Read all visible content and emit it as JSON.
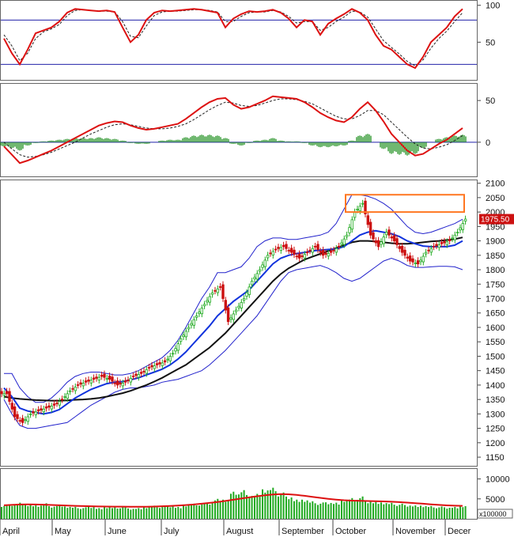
{
  "colors": {
    "rsi": "#dd1111",
    "signal": "#222222",
    "level_lines": "#2222aa",
    "hist_pos": "#118811",
    "hist_neg": "#118811",
    "bb": "#2222cc",
    "ma_fast": "#1133dd",
    "ma_slow": "#111111",
    "candle_up": "#22aa22",
    "candle_down": "#cc1111",
    "volume": "#22aa22",
    "volume_ma": "#dd1111",
    "highlight": "#ff7722"
  },
  "price_tag": "1975.50",
  "volume_unit": "x100000",
  "months": [
    "April",
    "May",
    "June",
    "July",
    "August",
    "September",
    "October",
    "November",
    "Decer"
  ],
  "chart_data": [
    {
      "type": "line",
      "panel": "stochastic",
      "ylim": [
        0,
        105
      ],
      "yticks": [
        50,
        100
      ],
      "levels": [
        20,
        80
      ],
      "x": [
        0,
        10,
        20,
        30,
        40,
        50,
        60,
        70,
        80,
        90,
        100,
        110,
        120,
        130,
        140,
        150,
        160,
        170,
        180,
        190,
        200,
        210,
        220,
        230,
        240,
        250,
        260,
        270,
        280,
        290,
        300,
        310,
        320,
        330,
        340,
        350,
        360,
        370,
        380,
        390,
        400,
        410,
        420,
        430,
        440,
        450,
        460,
        470,
        480,
        490,
        500,
        510,
        520,
        530,
        540,
        550,
        560,
        570,
        580
      ],
      "series": [
        {
          "values": [
            55,
            35,
            20,
            40,
            62,
            66,
            70,
            78,
            90,
            95,
            94,
            93,
            92,
            93,
            91,
            70,
            50,
            60,
            80,
            90,
            93,
            92,
            93,
            94,
            95,
            94,
            92,
            90,
            70,
            82,
            88,
            92,
            91,
            92,
            94,
            90,
            82,
            70,
            80,
            78,
            60,
            75,
            82,
            88,
            95,
            90,
            80,
            60,
            45,
            40,
            30,
            20,
            15,
            30,
            50,
            60,
            70,
            85,
            95
          ]
        },
        {
          "values": [
            60,
            45,
            25,
            35,
            55,
            64,
            68,
            74,
            86,
            93,
            94,
            93,
            92,
            92,
            91,
            78,
            58,
            56,
            72,
            86,
            91,
            92,
            92,
            93,
            94,
            94,
            93,
            91,
            78,
            78,
            85,
            90,
            91,
            91,
            93,
            91,
            85,
            76,
            78,
            78,
            66,
            70,
            78,
            84,
            92,
            91,
            84,
            68,
            52,
            43,
            34,
            24,
            18,
            26,
            42,
            55,
            65,
            78,
            90
          ]
        }
      ]
    },
    {
      "type": "line",
      "panel": "macd",
      "ylim": [
        -40,
        70
      ],
      "yticks": [
        0,
        50
      ],
      "x": [
        0,
        10,
        20,
        30,
        40,
        50,
        60,
        70,
        80,
        90,
        100,
        110,
        120,
        130,
        140,
        150,
        160,
        170,
        180,
        190,
        200,
        210,
        220,
        230,
        240,
        250,
        260,
        270,
        280,
        290,
        300,
        310,
        320,
        330,
        340,
        350,
        360,
        370,
        380,
        390,
        400,
        410,
        420,
        430,
        440,
        450,
        460,
        470,
        480,
        490,
        500,
        510,
        520,
        530,
        540,
        550,
        560,
        570,
        580
      ],
      "series": [
        {
          "values": [
            -5,
            -15,
            -25,
            -22,
            -18,
            -14,
            -10,
            -5,
            0,
            5,
            10,
            15,
            20,
            23,
            25,
            24,
            20,
            17,
            15,
            16,
            18,
            20,
            22,
            28,
            35,
            42,
            48,
            52,
            53,
            45,
            40,
            42,
            46,
            50,
            55,
            54,
            53,
            52,
            48,
            42,
            35,
            30,
            26,
            24,
            30,
            40,
            48,
            38,
            25,
            10,
            0,
            -10,
            -16,
            -14,
            -8,
            -2,
            3,
            10,
            17
          ]
        },
        {
          "values": [
            0,
            -8,
            -15,
            -18,
            -17,
            -15,
            -12,
            -8,
            -4,
            0,
            5,
            10,
            14,
            18,
            21,
            22,
            21,
            19,
            17,
            16,
            16,
            17,
            19,
            22,
            27,
            33,
            39,
            44,
            48,
            47,
            44,
            43,
            44,
            47,
            50,
            52,
            52,
            51,
            49,
            46,
            41,
            36,
            31,
            28,
            28,
            32,
            38,
            38,
            33,
            24,
            15,
            6,
            -2,
            -7,
            -8,
            -6,
            -3,
            2,
            8
          ]
        }
      ],
      "histogram": [
        -5,
        -7,
        -10,
        -4,
        -1,
        1,
        2,
        3,
        4,
        5,
        5,
        5,
        6,
        5,
        4,
        2,
        -1,
        -2,
        -2,
        0,
        2,
        3,
        3,
        6,
        8,
        9,
        9,
        8,
        5,
        -2,
        -4,
        -1,
        2,
        3,
        5,
        2,
        1,
        1,
        -1,
        -4,
        -6,
        -6,
        -5,
        -4,
        2,
        8,
        10,
        0,
        -8,
        -14,
        -15,
        -16,
        -14,
        -7,
        0,
        4,
        6,
        8,
        9
      ]
    },
    {
      "type": "candlestick",
      "panel": "price",
      "ylim": [
        1120,
        2110
      ],
      "yticks": [
        1150,
        1200,
        1250,
        1300,
        1350,
        1400,
        1450,
        1500,
        1550,
        1600,
        1650,
        1700,
        1750,
        1800,
        1850,
        1900,
        1950,
        2000,
        2050,
        2100
      ],
      "x": [
        0,
        10,
        20,
        30,
        40,
        50,
        60,
        70,
        80,
        90,
        100,
        110,
        120,
        130,
        140,
        150,
        160,
        170,
        180,
        190,
        200,
        210,
        220,
        230,
        240,
        250,
        260,
        270,
        280,
        290,
        300,
        310,
        320,
        330,
        340,
        350,
        360,
        370,
        380,
        390,
        400,
        410,
        420,
        430,
        440,
        450,
        460,
        470,
        480,
        490,
        500,
        510,
        520,
        530,
        540,
        550,
        560,
        570,
        580
      ],
      "close": [
        1370,
        1290,
        1270,
        1300,
        1310,
        1320,
        1330,
        1350,
        1380,
        1400,
        1410,
        1420,
        1430,
        1420,
        1400,
        1410,
        1430,
        1440,
        1460,
        1470,
        1480,
        1510,
        1560,
        1600,
        1640,
        1680,
        1720,
        1740,
        1620,
        1660,
        1700,
        1760,
        1800,
        1850,
        1870,
        1880,
        1860,
        1840,
        1860,
        1880,
        1850,
        1860,
        1880,
        1920,
        2000,
        2030,
        1920,
        1880,
        1930,
        1900,
        1860,
        1830,
        1820,
        1860,
        1880,
        1890,
        1900,
        1930,
        1975.5
      ],
      "ma_fast": [
        1390,
        1360,
        1320,
        1310,
        1305,
        1300,
        1305,
        1315,
        1335,
        1355,
        1370,
        1385,
        1395,
        1405,
        1410,
        1412,
        1418,
        1425,
        1435,
        1445,
        1455,
        1470,
        1490,
        1515,
        1545,
        1575,
        1605,
        1640,
        1665,
        1690,
        1710,
        1730,
        1760,
        1790,
        1820,
        1840,
        1850,
        1856,
        1860,
        1865,
        1868,
        1870,
        1872,
        1880,
        1900,
        1920,
        1930,
        1935,
        1930,
        1925,
        1915,
        1900,
        1890,
        1882,
        1880,
        1880,
        1880,
        1885,
        1900
      ],
      "ma_slow": [
        1360,
        1355,
        1352,
        1350,
        1348,
        1347,
        1346,
        1346,
        1347,
        1349,
        1350,
        1352,
        1355,
        1360,
        1366,
        1372,
        1380,
        1390,
        1400,
        1412,
        1425,
        1440,
        1455,
        1470,
        1490,
        1510,
        1530,
        1555,
        1580,
        1610,
        1640,
        1670,
        1700,
        1730,
        1760,
        1785,
        1805,
        1820,
        1835,
        1845,
        1855,
        1865,
        1875,
        1885,
        1895,
        1900,
        1900,
        1898,
        1895,
        1892,
        1890,
        1890,
        1892,
        1895,
        1898,
        1900,
        1903,
        1906,
        1912
      ],
      "bb_upper": [
        1440,
        1440,
        1390,
        1360,
        1340,
        1340,
        1355,
        1380,
        1410,
        1430,
        1440,
        1445,
        1445,
        1440,
        1435,
        1435,
        1440,
        1450,
        1465,
        1480,
        1495,
        1520,
        1555,
        1600,
        1650,
        1700,
        1740,
        1790,
        1790,
        1800,
        1810,
        1840,
        1880,
        1900,
        1910,
        1910,
        1905,
        1905,
        1910,
        1915,
        1920,
        1930,
        1960,
        2010,
        2060,
        2060,
        2055,
        2045,
        2030,
        2010,
        1980,
        1950,
        1930,
        1925,
        1930,
        1940,
        1950,
        1960,
        1975
      ],
      "bb_lower": [
        1350,
        1300,
        1260,
        1250,
        1250,
        1255,
        1260,
        1265,
        1270,
        1290,
        1310,
        1330,
        1345,
        1360,
        1375,
        1385,
        1390,
        1390,
        1395,
        1400,
        1410,
        1415,
        1420,
        1430,
        1440,
        1450,
        1470,
        1495,
        1520,
        1550,
        1580,
        1610,
        1640,
        1680,
        1720,
        1760,
        1790,
        1800,
        1805,
        1810,
        1815,
        1805,
        1790,
        1770,
        1760,
        1770,
        1790,
        1810,
        1830,
        1840,
        1830,
        1815,
        1808,
        1808,
        1810,
        1812,
        1812,
        1810,
        1800
      ],
      "highlight_box": {
        "x0": 437,
        "x1": 587,
        "y0": 2000,
        "y1": 2060
      }
    },
    {
      "type": "bar",
      "panel": "volume",
      "ylim": [
        0,
        12500
      ],
      "yticks": [
        5000,
        10000
      ],
      "x": [
        0,
        10,
        20,
        30,
        40,
        50,
        60,
        70,
        80,
        90,
        100,
        110,
        120,
        130,
        140,
        150,
        160,
        170,
        180,
        190,
        200,
        210,
        220,
        230,
        240,
        250,
        260,
        270,
        280,
        290,
        300,
        310,
        320,
        330,
        340,
        350,
        360,
        370,
        380,
        390,
        400,
        410,
        420,
        430,
        440,
        450,
        460,
        470,
        480,
        490,
        500,
        510,
        520,
        530,
        540,
        550,
        560,
        570,
        580
      ],
      "values": [
        3500,
        3800,
        4200,
        3600,
        3400,
        3900,
        3300,
        3600,
        3100,
        3000,
        2900,
        3200,
        2800,
        3000,
        2900,
        3100,
        2700,
        2800,
        3000,
        3300,
        3200,
        3400,
        3100,
        3500,
        3800,
        3900,
        4200,
        5200,
        4800,
        6800,
        7200,
        6200,
        6500,
        7400,
        7800,
        6600,
        5800,
        5000,
        4800,
        4400,
        4100,
        4300,
        4200,
        4800,
        5200,
        5600,
        4600,
        4400,
        4100,
        4000,
        3800,
        3600,
        3500,
        3300,
        3200,
        3100,
        3000,
        3100,
        3300
      ],
      "ma": [
        3400,
        3500,
        3600,
        3620,
        3600,
        3550,
        3480,
        3400,
        3320,
        3250,
        3200,
        3150,
        3100,
        3080,
        3060,
        3050,
        3040,
        3030,
        3040,
        3080,
        3150,
        3230,
        3330,
        3450,
        3600,
        3780,
        3980,
        4220,
        4480,
        4780,
        5080,
        5380,
        5650,
        5900,
        6100,
        6200,
        6150,
        6000,
        5780,
        5520,
        5260,
        5020,
        4820,
        4660,
        4560,
        4500,
        4460,
        4420,
        4360,
        4280,
        4180,
        4060,
        3920,
        3780,
        3640,
        3500,
        3380,
        3300,
        3260
      ]
    }
  ]
}
